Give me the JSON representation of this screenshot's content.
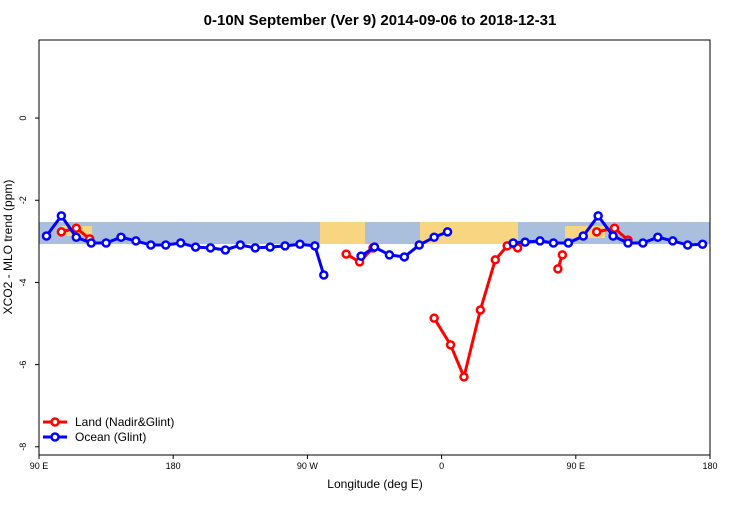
{
  "chart_data": {
    "type": "line",
    "title": "0-10N September (Ver 9)   2014-09-06 to 2018-12-31",
    "x_label": "Longitude (deg E)",
    "y_label": "XCO2 - MLO trend (ppm)",
    "xlim": [
      90,
      540
    ],
    "ylim": [
      -8.2,
      1.9
    ],
    "xticks": [
      {
        "value": 90,
        "label": "90 E"
      },
      180,
      {
        "value": 270,
        "label": "90 W"
      },
      {
        "value": 360,
        "label": "0"
      },
      {
        "value": 450,
        "label": "90 E"
      },
      {
        "value": 540,
        "label": "180"
      }
    ],
    "yticks": [
      0,
      -2,
      -4,
      -6,
      -8
    ],
    "legend": "bottom-left",
    "series": [
      {
        "name": "Land (Nadir&Glint)",
        "color": "#ff0000",
        "x": [
          105,
          115,
          124,
          null,
          296,
          305,
          314,
          null,
          355,
          366,
          375,
          386,
          396,
          404,
          411,
          null,
          438,
          441,
          null,
          464,
          476,
          485
        ],
        "values": [
          -2.77,
          -2.68,
          -2.94,
          null,
          -3.31,
          -3.5,
          -3.16,
          null,
          -4.87,
          -5.52,
          -6.3,
          -4.67,
          -3.45,
          -3.11,
          -3.16,
          null,
          -3.67,
          -3.33,
          null,
          -2.77,
          -2.68,
          -2.97
        ]
      },
      {
        "name": "Ocean (Glint)",
        "color": "#0000ff",
        "x": [
          95,
          105,
          115,
          125,
          135,
          145,
          155,
          165,
          175,
          185,
          195,
          205,
          215,
          225,
          235,
          245,
          255,
          265,
          275,
          281,
          null,
          306,
          315,
          325,
          335,
          345,
          355,
          364,
          null,
          408,
          416,
          426,
          435,
          445,
          455,
          465,
          475,
          485,
          495,
          505,
          515,
          525,
          535
        ],
        "values": [
          -2.87,
          -2.38,
          -2.9,
          -3.04,
          -3.04,
          -2.9,
          -2.99,
          -3.09,
          -3.09,
          -3.04,
          -3.14,
          -3.16,
          -3.21,
          -3.09,
          -3.16,
          -3.14,
          -3.11,
          -3.07,
          -3.11,
          -3.82,
          null,
          -3.36,
          -3.14,
          -3.33,
          -3.38,
          -3.09,
          -2.9,
          -2.77,
          null,
          -3.04,
          -3.02,
          -2.99,
          -3.04,
          -3.04,
          -2.87,
          -2.38,
          -2.87,
          -3.04,
          -3.04,
          -2.9,
          -2.99,
          -3.09,
          -3.07
        ]
      }
    ]
  }
}
